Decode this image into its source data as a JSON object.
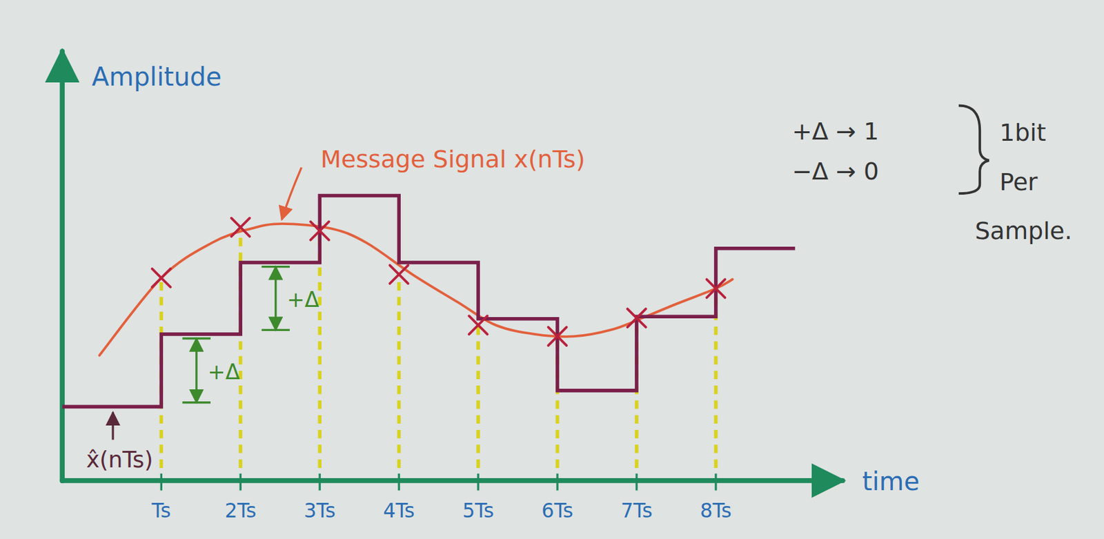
{
  "chart_data": {
    "type": "line",
    "x_label": "time",
    "y_label": "Amplitude",
    "xlim": [
      -0.25,
      9.6
    ],
    "ylim": [
      0,
      6.1
    ],
    "xticks": [
      {
        "value": 1,
        "label": "Ts"
      },
      {
        "value": 2,
        "label": "2Ts"
      },
      {
        "value": 3,
        "label": "3Ts"
      },
      {
        "value": 4,
        "label": "4Ts"
      },
      {
        "value": 5,
        "label": "5Ts"
      },
      {
        "value": 6,
        "label": "6Ts"
      },
      {
        "value": 7,
        "label": "7Ts"
      },
      {
        "value": 8,
        "label": "8Ts"
      }
    ],
    "yticks": [],
    "tick_labels": "x",
    "series": [
      {
        "name": "Message Signal x(nTs)",
        "color": "#e2603c",
        "line_style": "smooth",
        "x": [
          0.22,
          1.0,
          1.64,
          2.13,
          2.53,
          3.15,
          3.59,
          4.17,
          4.75,
          5.22,
          5.72,
          6.21,
          6.7,
          7.07,
          7.5,
          8.0,
          8.21
        ],
        "values": [
          1.78,
          2.88,
          3.38,
          3.58,
          3.65,
          3.58,
          3.38,
          2.93,
          2.53,
          2.21,
          2.08,
          2.05,
          2.15,
          2.31,
          2.51,
          2.73,
          2.86
        ]
      },
      {
        "name": "x̂(nTs)",
        "color": "#7a1f4a",
        "line_style": "steps",
        "x": [
          -0.25,
          1,
          2,
          3,
          4,
          5,
          6,
          7,
          8,
          9
        ],
        "values": [
          1.05,
          2.08,
          3.1,
          4.05,
          3.1,
          2.3,
          1.28,
          2.33,
          3.3,
          3.3
        ]
      },
      {
        "color": "#b8213c",
        "marker": "x",
        "line_style": "none",
        "x": [
          1,
          2,
          3,
          4,
          5,
          6,
          7,
          8
        ],
        "values": [
          2.88,
          3.6,
          3.55,
          2.93,
          2.21,
          2.05,
          2.31,
          2.73
        ]
      }
    ],
    "annotations": [
      "+Δ",
      "+Δ",
      "+Δ → 1",
      "−Δ → 0",
      "1bit Per Sample."
    ]
  }
}
